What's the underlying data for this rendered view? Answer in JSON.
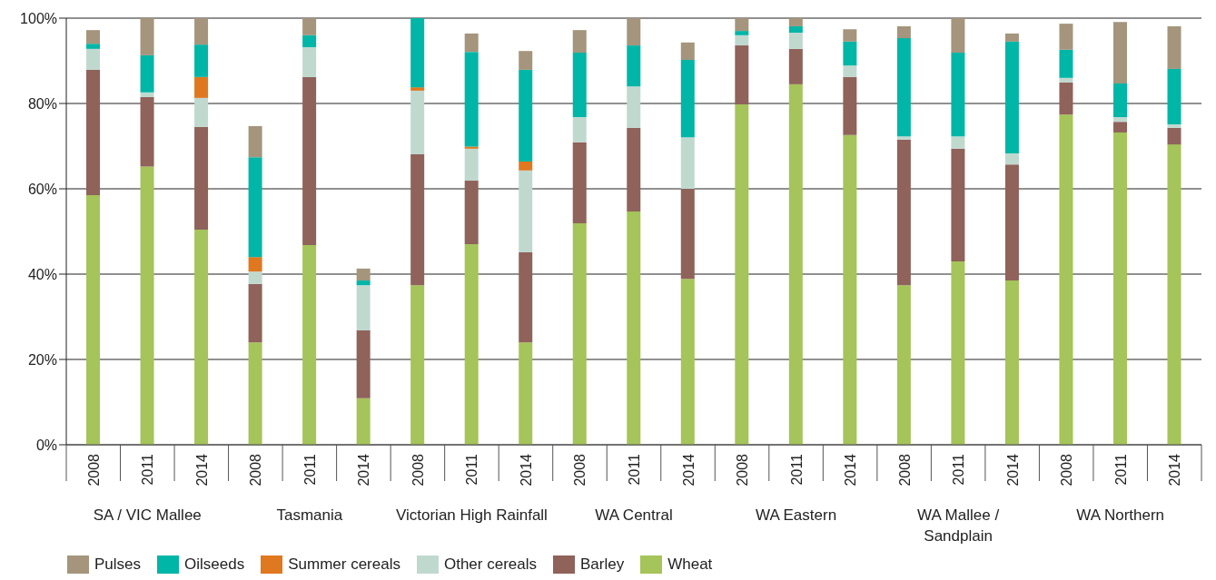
{
  "chart_data": {
    "type": "bar",
    "stacked": true,
    "categories": [
      "2008",
      "2011",
      "2014",
      "2008",
      "2011",
      "2014",
      "2008",
      "2011",
      "2014",
      "2008",
      "2011",
      "2014",
      "2008",
      "2011",
      "2014",
      "2008",
      "2011",
      "2014",
      "2008",
      "2011",
      "2014"
    ],
    "series": [
      {
        "name": "Wheat",
        "color": "#a5c459",
        "values": [
          58.5,
          65.2,
          50.4,
          24.0,
          46.8,
          10.9,
          37.4,
          47.0,
          24.0,
          51.9,
          54.7,
          38.9,
          79.8,
          84.5,
          72.6,
          37.4,
          43.0,
          38.5,
          77.4,
          73.2,
          70.4
        ]
      },
      {
        "name": "Barley",
        "color": "#8f625a",
        "values": [
          29.4,
          16.3,
          24.1,
          13.7,
          39.4,
          15.9,
          30.7,
          14.9,
          21.1,
          19.0,
          19.6,
          21.1,
          13.8,
          8.3,
          13.6,
          34.1,
          26.4,
          27.2,
          7.5,
          2.5,
          3.9
        ]
      },
      {
        "name": "Other cereals",
        "color": "#c0d9cf",
        "values": [
          4.9,
          1.1,
          6.8,
          2.9,
          7.0,
          10.6,
          14.9,
          7.5,
          19.2,
          5.9,
          9.7,
          12.1,
          2.4,
          3.8,
          2.7,
          0.8,
          2.9,
          2.6,
          1.1,
          1.1,
          0.8
        ]
      },
      {
        "name": "Summer cereals",
        "color": "#e07820",
        "values": [
          0,
          0,
          4.9,
          3.4,
          0,
          0,
          0.8,
          0.5,
          2.1,
          0,
          0,
          0,
          0,
          0,
          0,
          0,
          0,
          0,
          0,
          0,
          0
        ]
      },
      {
        "name": "Oilseeds",
        "color": "#00b6a7",
        "values": [
          1.2,
          8.7,
          7.6,
          23.4,
          2.8,
          1.1,
          16.2,
          22.2,
          21.5,
          15.1,
          9.6,
          18.1,
          1.0,
          1.5,
          5.6,
          23.0,
          19.6,
          26.2,
          6.6,
          7.9,
          13.0
        ]
      },
      {
        "name": "Pulses",
        "color": "#a4957c",
        "values": [
          3.2,
          8.7,
          6.2,
          7.3,
          4.0,
          2.8,
          0,
          4.3,
          4.4,
          5.3,
          6.4,
          4.1,
          3.0,
          1.9,
          2.9,
          2.8,
          8.1,
          1.9,
          6.1,
          14.4,
          10.0
        ]
      }
    ],
    "ylim": [
      0,
      100
    ],
    "yticks": [
      {
        "value": 0,
        "label": "0%"
      },
      {
        "value": 20,
        "label": "20%"
      },
      {
        "value": 40,
        "label": "40%"
      },
      {
        "value": 60,
        "label": "60%"
      },
      {
        "value": 80,
        "label": "80%"
      },
      {
        "value": 100,
        "label": "100%"
      }
    ],
    "grid": "y",
    "legend": "bottom left",
    "annotations": [
      "SA / VIC Mallee",
      "Tasmania",
      "Victorian High Rainfall",
      "WA Central",
      "WA Eastern",
      "WA Mallee /\nSandplain",
      "WA Northern"
    ]
  }
}
